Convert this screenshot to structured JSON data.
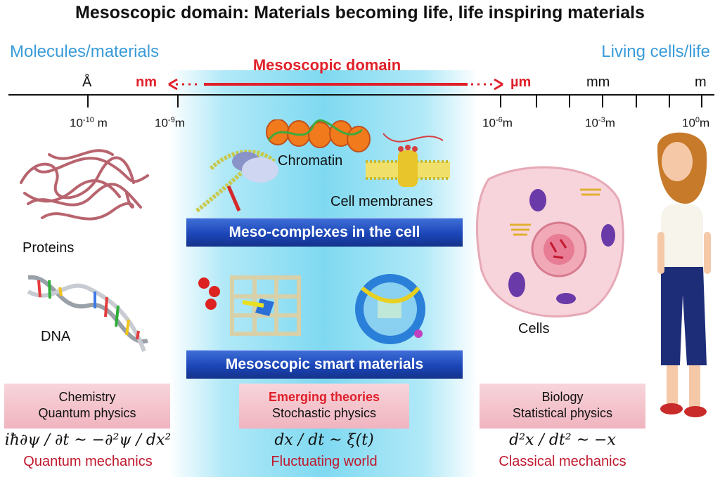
{
  "title": "Mesoscopic domain: Materials becoming life, life inspiring materials",
  "left_heading": "Molecules/materials",
  "right_heading": "Living cells/life",
  "center_heading": "Mesoscopic domain",
  "scale_units": {
    "angstrom": "Å",
    "nm": "nm",
    "um": "µm",
    "mm": "mm",
    "m": "m"
  },
  "ticks": [
    {
      "base": "10",
      "exp": "-10",
      "unit": "m"
    },
    {
      "base": "10",
      "exp": "-9",
      "unit": "m"
    },
    {
      "base": "10",
      "exp": "-6",
      "unit": "m"
    },
    {
      "base": "10",
      "exp": "-3",
      "unit": "m"
    },
    {
      "base": "10",
      "exp": "0",
      "unit": "m"
    }
  ],
  "labels": {
    "chromatin": "Chromatin",
    "cell_membranes": "Cell membranes",
    "proteins": "Proteins",
    "dna": "DNA",
    "cells": "Cells"
  },
  "banners": {
    "meso_complexes": "Meso-complexes in the cell",
    "smart_materials": "Mesoscopic smart materials"
  },
  "columns": [
    {
      "line1": "Chemistry",
      "line2": "Quantum physics",
      "equation": "iħ∂ψ / ∂t ~ −∂²ψ / dx²",
      "footer": "Quantum mechanics"
    },
    {
      "line1": "Emerging theories",
      "line2": "Stochastic physics",
      "equation": "dx / dt ~ ξ(t)",
      "footer": "Fluctuating world"
    },
    {
      "line1": "Biology",
      "line2": "Statistical physics",
      "equation": "d²x / dt² ~ −x",
      "footer": "Classical mechanics"
    }
  ],
  "colors": {
    "accent_red": "#e0202a",
    "heading_blue": "#3a9bd9",
    "banner_blue": "#1c46b8",
    "box_pink": "#f0b4bf"
  }
}
